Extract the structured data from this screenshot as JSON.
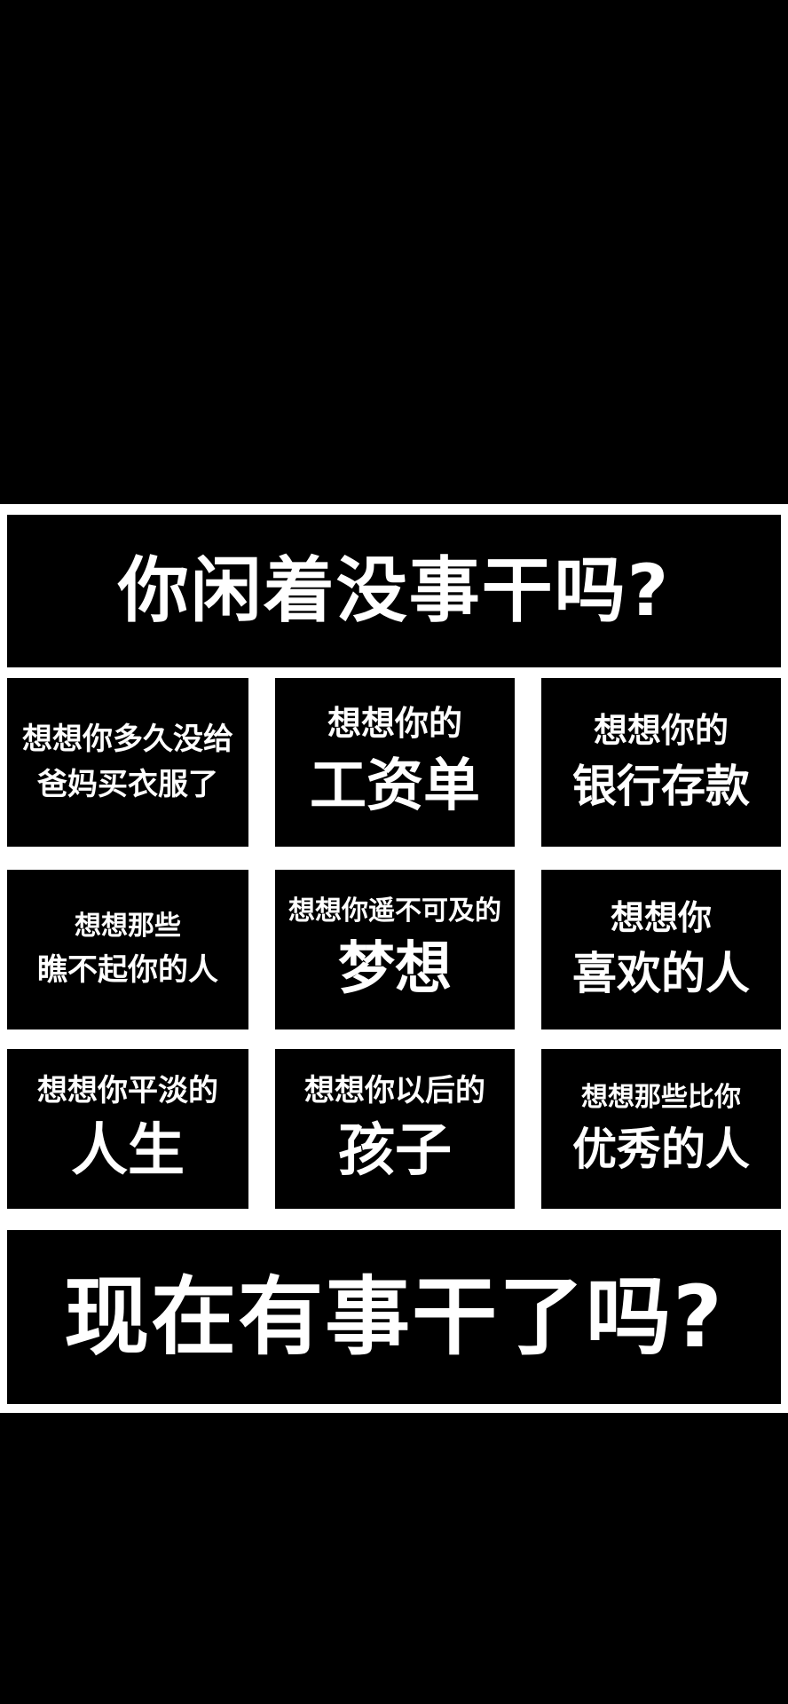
{
  "title": "你闲着没事干吗?",
  "cells": [
    {
      "line1": "想想你多久没给",
      "line2": "爸妈买衣服了"
    },
    {
      "line1": "想想你的",
      "line2": "工资单"
    },
    {
      "line1": "想想你的",
      "line2": "银行存款"
    },
    {
      "line1": "想想那些",
      "line2": "瞧不起你的人"
    },
    {
      "line1": "想想你遥不可及的",
      "line2": "梦想"
    },
    {
      "line1": "想想你",
      "line2": "喜欢的人"
    },
    {
      "line1": "想想你平淡的",
      "line2": "人生"
    },
    {
      "line1": "想想你以后的",
      "line2": "孩子"
    },
    {
      "line1": "想想那些比你",
      "line2": "优秀的人"
    }
  ],
  "footer": "现在有事干了吗?",
  "colors": {
    "background": "#000000",
    "frame": "#ffffff",
    "text": "#ffffff"
  }
}
